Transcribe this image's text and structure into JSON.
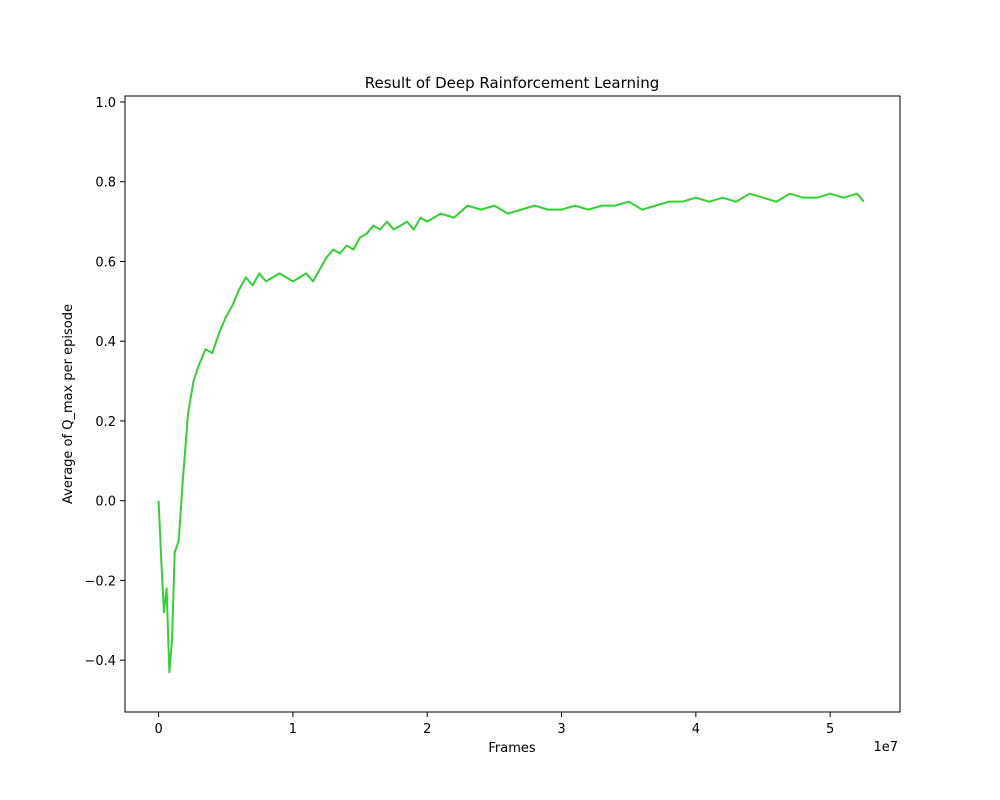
{
  "chart_data": {
    "type": "line",
    "title": "Result of Deep Rainforcement Learning",
    "xlabel": "Frames",
    "ylabel": "Average of Q_max per episode",
    "x_offset_text": "1e7",
    "xlim": [
      -2500000,
      55200000
    ],
    "ylim": [
      -0.53,
      1.015
    ],
    "x_ticks": [
      {
        "value": 0,
        "label": "0"
      },
      {
        "value": 10000000,
        "label": "1"
      },
      {
        "value": 20000000,
        "label": "2"
      },
      {
        "value": 30000000,
        "label": "3"
      },
      {
        "value": 40000000,
        "label": "4"
      },
      {
        "value": 50000000,
        "label": "5"
      }
    ],
    "y_ticks": [
      {
        "value": -0.4,
        "label": "−0.4"
      },
      {
        "value": -0.2,
        "label": "−0.2"
      },
      {
        "value": 0.0,
        "label": "0.0"
      },
      {
        "value": 0.2,
        "label": "0.2"
      },
      {
        "value": 0.4,
        "label": "0.4"
      },
      {
        "value": 0.6,
        "label": "0.6"
      },
      {
        "value": 0.8,
        "label": "0.8"
      },
      {
        "value": 1.0,
        "label": "1.0"
      }
    ],
    "grid": false,
    "legend": "none",
    "series": [
      {
        "color": "#32d232",
        "x": [
          0,
          200000,
          400000,
          600000,
          800000,
          1000000,
          1200000,
          1500000,
          1800000,
          2200000,
          2600000,
          3000000,
          3500000,
          4000000,
          4500000,
          5000000,
          5500000,
          6000000,
          6500000,
          7000000,
          7500000,
          8000000,
          8500000,
          9000000,
          9500000,
          10000000,
          10500000,
          11000000,
          11500000,
          12000000,
          12500000,
          13000000,
          13500000,
          14000000,
          14500000,
          15000000,
          15500000,
          16000000,
          16500000,
          17000000,
          17500000,
          18000000,
          18500000,
          19000000,
          19500000,
          20000000,
          20500000,
          21000000,
          22000000,
          23000000,
          24000000,
          25000000,
          26000000,
          27000000,
          28000000,
          29000000,
          30000000,
          31000000,
          32000000,
          33000000,
          34000000,
          35000000,
          36000000,
          37000000,
          38000000,
          39000000,
          40000000,
          41000000,
          42000000,
          43000000,
          44000000,
          45000000,
          46000000,
          47000000,
          48000000,
          49000000,
          50000000,
          51000000,
          52000000,
          52500000
        ],
        "values": [
          0.0,
          -0.15,
          -0.28,
          -0.22,
          -0.43,
          -0.35,
          -0.13,
          -0.1,
          0.05,
          0.22,
          0.3,
          0.34,
          0.38,
          0.37,
          0.42,
          0.46,
          0.49,
          0.53,
          0.56,
          0.54,
          0.57,
          0.55,
          0.56,
          0.57,
          0.56,
          0.55,
          0.56,
          0.57,
          0.55,
          0.58,
          0.61,
          0.63,
          0.62,
          0.64,
          0.63,
          0.66,
          0.67,
          0.69,
          0.68,
          0.7,
          0.68,
          0.69,
          0.7,
          0.68,
          0.71,
          0.7,
          0.71,
          0.72,
          0.71,
          0.74,
          0.73,
          0.74,
          0.72,
          0.73,
          0.74,
          0.73,
          0.73,
          0.74,
          0.73,
          0.74,
          0.74,
          0.75,
          0.73,
          0.74,
          0.75,
          0.75,
          0.76,
          0.75,
          0.76,
          0.75,
          0.77,
          0.76,
          0.75,
          0.77,
          0.76,
          0.76,
          0.77,
          0.76,
          0.77,
          0.75
        ]
      }
    ]
  }
}
